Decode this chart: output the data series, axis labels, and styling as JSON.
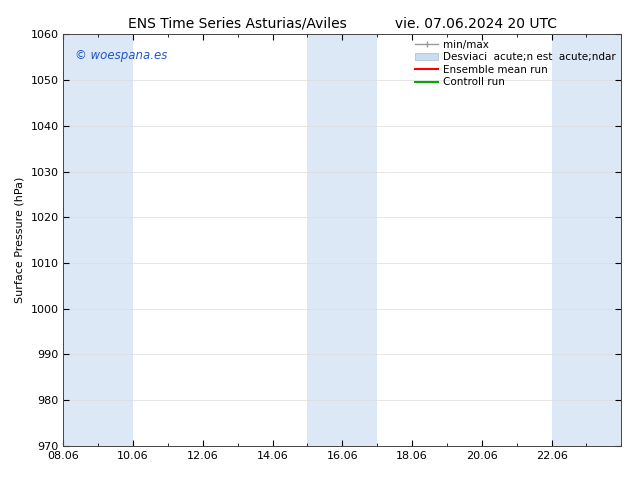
{
  "title_left": "ENS Time Series Asturias/Aviles",
  "title_right": "vie. 07.06.2024 20 UTC",
  "ylabel": "Surface Pressure (hPa)",
  "ylim": [
    970,
    1060
  ],
  "yticks": [
    970,
    980,
    990,
    1000,
    1010,
    1020,
    1030,
    1040,
    1050,
    1060
  ],
  "xtick_labels": [
    "08.06",
    "10.06",
    "12.06",
    "14.06",
    "16.06",
    "18.06",
    "20.06",
    "22.06"
  ],
  "xtick_positions": [
    0,
    2,
    4,
    6,
    8,
    10,
    12,
    14
  ],
  "xlim": [
    0,
    16
  ],
  "watermark": "© woespana.es",
  "watermark_color": "#2255cc",
  "background_color": "#ffffff",
  "plot_bg_color": "#ffffff",
  "shaded_bands": [
    {
      "x_start": 0,
      "x_end": 2,
      "color": "#dce8f5"
    },
    {
      "x_start": 7,
      "x_end": 9,
      "color": "#dce8f5"
    },
    {
      "x_start": 14,
      "x_end": 16,
      "color": "#dce8f5"
    }
  ],
  "legend_label_minmax": "min/max",
  "legend_label_std": "Desviaci  acute;n est  acute;ndar",
  "legend_label_ens": "Ensemble mean run",
  "legend_label_ctrl": "Controll run",
  "legend_color_minmax": "#999999",
  "legend_color_std": "#c8ddf0",
  "legend_color_ens": "#ff0000",
  "legend_color_ctrl": "#00aa00",
  "title_fontsize": 10,
  "axis_fontsize": 8,
  "tick_fontsize": 8,
  "legend_fontsize": 7.5
}
